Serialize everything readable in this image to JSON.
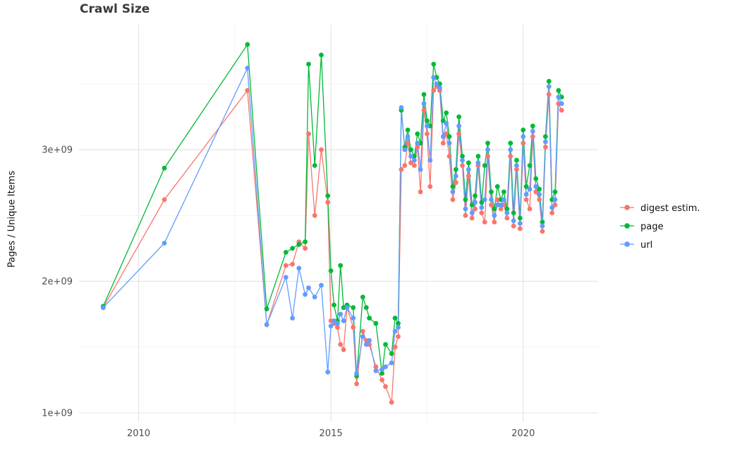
{
  "chart_data": {
    "type": "line",
    "title": "Crawl Size",
    "xlabel": "",
    "ylabel": "Pages / Unique Items",
    "legend_position": "right",
    "grid": true,
    "background": "#FFFFFF",
    "grid_major_color": "#E5E5E5",
    "grid_minor_color": "#F2F2F2",
    "xlim": [
      2008.45,
      2021.95
    ],
    "ylim": [
      0.93,
      3.95
    ],
    "y_unit": "1e9 pages",
    "x_ticks": [
      2010,
      2015,
      2020
    ],
    "x_tick_labels": [
      "2010",
      "2015",
      "2020"
    ],
    "x_minor_ticks": [
      2012.5,
      2017.5
    ],
    "y_ticks": [
      1,
      2,
      3
    ],
    "y_tick_labels": [
      "1e+09",
      "2e+09",
      "3e+09"
    ],
    "y_minor_ticks": [
      1.5,
      2.5,
      3.5
    ],
    "x": [
      2009.08,
      2010.67,
      2012.83,
      2013.33,
      2013.83,
      2014.0,
      2014.17,
      2014.33,
      2014.42,
      2014.58,
      2014.75,
      2014.92,
      2015.0,
      2015.08,
      2015.17,
      2015.25,
      2015.33,
      2015.42,
      2015.58,
      2015.67,
      2015.83,
      2015.92,
      2016.0,
      2016.17,
      2016.33,
      2016.42,
      2016.58,
      2016.67,
      2016.75,
      2016.83,
      2016.92,
      2017.0,
      2017.08,
      2017.17,
      2017.25,
      2017.33,
      2017.42,
      2017.5,
      2017.58,
      2017.67,
      2017.75,
      2017.83,
      2017.92,
      2018.0,
      2018.08,
      2018.17,
      2018.25,
      2018.33,
      2018.42,
      2018.5,
      2018.58,
      2018.67,
      2018.75,
      2018.83,
      2018.92,
      2019.0,
      2019.08,
      2019.17,
      2019.25,
      2019.33,
      2019.42,
      2019.5,
      2019.58,
      2019.67,
      2019.75,
      2019.83,
      2019.92,
      2020.0,
      2020.08,
      2020.17,
      2020.25,
      2020.33,
      2020.42,
      2020.5,
      2020.58,
      2020.67,
      2020.75,
      2020.83,
      2020.92,
      2021.0
    ],
    "series": [
      {
        "name": "digest estim.",
        "color": "#F8766D",
        "y": [
          1.8,
          2.62,
          3.45,
          1.67,
          2.12,
          2.13,
          2.3,
          2.25,
          3.12,
          2.5,
          3.0,
          2.6,
          1.7,
          1.68,
          1.65,
          1.52,
          1.48,
          1.8,
          1.65,
          1.22,
          1.62,
          1.55,
          1.52,
          1.35,
          1.25,
          1.2,
          1.08,
          1.5,
          1.58,
          2.85,
          2.88,
          3.05,
          2.9,
          2.88,
          3.02,
          2.68,
          3.3,
          3.12,
          2.72,
          3.45,
          3.48,
          3.45,
          3.05,
          3.12,
          2.95,
          2.62,
          2.75,
          3.12,
          2.88,
          2.5,
          2.8,
          2.48,
          2.55,
          2.88,
          2.52,
          2.45,
          2.95,
          2.58,
          2.45,
          2.62,
          2.55,
          2.58,
          2.48,
          2.95,
          2.42,
          2.85,
          2.4,
          3.05,
          2.62,
          2.55,
          3.1,
          2.68,
          2.62,
          2.38,
          3.02,
          3.42,
          2.52,
          2.58,
          3.35,
          3.3
        ]
      },
      {
        "name": "page",
        "color": "#00BA38",
        "y": [
          1.81,
          2.86,
          3.8,
          1.79,
          2.22,
          2.25,
          2.28,
          2.3,
          3.65,
          2.88,
          3.72,
          2.65,
          2.08,
          1.82,
          1.7,
          2.12,
          1.8,
          1.82,
          1.8,
          1.28,
          1.88,
          1.8,
          1.72,
          1.68,
          1.3,
          1.52,
          1.45,
          1.72,
          1.68,
          3.3,
          3.02,
          3.15,
          3.0,
          2.95,
          3.12,
          3.05,
          3.42,
          3.22,
          3.18,
          3.65,
          3.55,
          3.5,
          3.22,
          3.28,
          3.1,
          2.72,
          2.85,
          3.25,
          2.95,
          2.62,
          2.9,
          2.58,
          2.65,
          2.95,
          2.6,
          2.88,
          3.05,
          2.68,
          2.55,
          2.72,
          2.62,
          2.68,
          2.55,
          3.05,
          2.52,
          2.92,
          2.48,
          3.15,
          2.72,
          2.88,
          3.18,
          2.78,
          2.7,
          2.45,
          3.1,
          3.52,
          2.62,
          2.68,
          3.45,
          3.4
        ]
      },
      {
        "name": "url",
        "color": "#619CFF",
        "y": [
          1.8,
          2.29,
          3.62,
          1.67,
          2.03,
          1.72,
          2.1,
          1.9,
          1.95,
          1.88,
          1.97,
          1.31,
          1.66,
          1.7,
          1.68,
          1.75,
          1.7,
          1.8,
          1.72,
          1.3,
          1.58,
          1.52,
          1.55,
          1.32,
          1.33,
          1.35,
          1.38,
          1.62,
          1.65,
          3.32,
          3.0,
          3.1,
          2.95,
          2.92,
          3.05,
          2.85,
          3.35,
          3.18,
          2.92,
          3.55,
          3.5,
          3.47,
          3.1,
          3.2,
          3.05,
          2.68,
          2.8,
          3.18,
          2.92,
          2.55,
          2.85,
          2.52,
          2.6,
          2.9,
          2.56,
          2.62,
          3.0,
          2.62,
          2.5,
          2.58,
          2.58,
          2.62,
          2.52,
          3.0,
          2.46,
          2.88,
          2.44,
          3.1,
          2.66,
          2.7,
          3.14,
          2.72,
          2.66,
          2.42,
          3.06,
          3.48,
          2.56,
          2.62,
          3.4,
          3.35
        ]
      }
    ]
  }
}
